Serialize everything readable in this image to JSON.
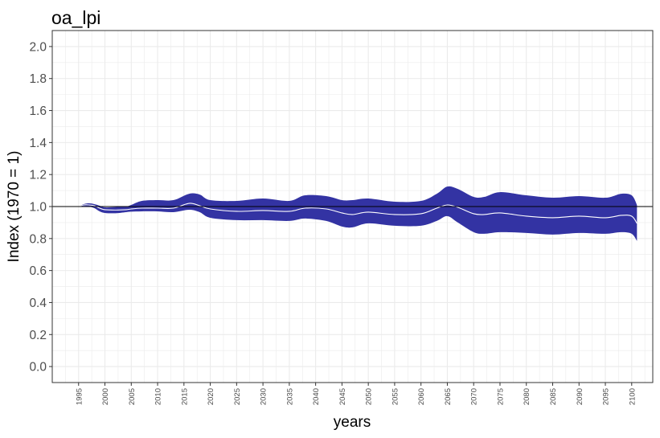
{
  "chart_data": {
    "type": "area",
    "title": "oa_lpi",
    "xlabel": "years",
    "ylabel": "Index (1970 = 1)",
    "xlim": [
      1990,
      2104
    ],
    "ylim": [
      -0.1,
      2.1
    ],
    "x_ticks": [
      1995,
      2000,
      2005,
      2010,
      2015,
      2020,
      2025,
      2030,
      2035,
      2040,
      2045,
      2050,
      2055,
      2060,
      2065,
      2070,
      2075,
      2080,
      2085,
      2090,
      2095,
      2100
    ],
    "y_ticks": [
      0.0,
      0.2,
      0.4,
      0.6,
      0.8,
      1.0,
      1.2,
      1.4,
      1.6,
      1.8,
      2.0
    ],
    "reference_line": 1.0,
    "grid": true,
    "x": [
      1995,
      1996,
      1997,
      1998,
      1999,
      2000,
      2002,
      2004,
      2005,
      2007,
      2010,
      2013,
      2016,
      2018,
      2020,
      2025,
      2030,
      2035,
      2038,
      2042,
      2045,
      2047,
      2050,
      2055,
      2060,
      2063,
      2065,
      2067,
      2070,
      2072,
      2075,
      2080,
      2085,
      2090,
      2095,
      2098,
      2100,
      2101
    ],
    "series": [
      {
        "values": [
          1.0,
          1.01,
          1.01,
          1.005,
          0.99,
          0.98,
          0.978,
          0.98,
          0.985,
          0.99,
          0.99,
          0.99,
          1.02,
          1.005,
          0.985,
          0.97,
          0.975,
          0.97,
          0.99,
          0.985,
          0.96,
          0.95,
          0.965,
          0.95,
          0.955,
          0.99,
          1.01,
          0.995,
          0.955,
          0.95,
          0.96,
          0.94,
          0.93,
          0.94,
          0.93,
          0.945,
          0.94,
          0.895
        ],
        "lower": [
          1.0,
          1.003,
          1.0,
          0.99,
          0.97,
          0.96,
          0.958,
          0.965,
          0.968,
          0.97,
          0.97,
          0.965,
          0.98,
          0.965,
          0.93,
          0.915,
          0.915,
          0.91,
          0.925,
          0.91,
          0.875,
          0.87,
          0.895,
          0.88,
          0.88,
          0.91,
          0.94,
          0.9,
          0.84,
          0.83,
          0.84,
          0.835,
          0.825,
          0.835,
          0.83,
          0.84,
          0.83,
          0.785
        ],
        "upper": [
          1.0,
          1.015,
          1.02,
          1.015,
          1.005,
          0.995,
          0.997,
          1.0,
          1.01,
          1.035,
          1.04,
          1.04,
          1.08,
          1.075,
          1.04,
          1.035,
          1.05,
          1.035,
          1.07,
          1.065,
          1.04,
          1.04,
          1.05,
          1.03,
          1.035,
          1.08,
          1.125,
          1.11,
          1.06,
          1.06,
          1.09,
          1.07,
          1.055,
          1.065,
          1.055,
          1.08,
          1.07,
          1.01
        ]
      }
    ],
    "colors": {
      "band": "#3333a3",
      "line": "#ffffff",
      "reference": "#000000",
      "grid": "#ebebeb",
      "panel_border": "#333333",
      "tick_text": "#4d4d4d",
      "title_text": "#000000"
    }
  }
}
